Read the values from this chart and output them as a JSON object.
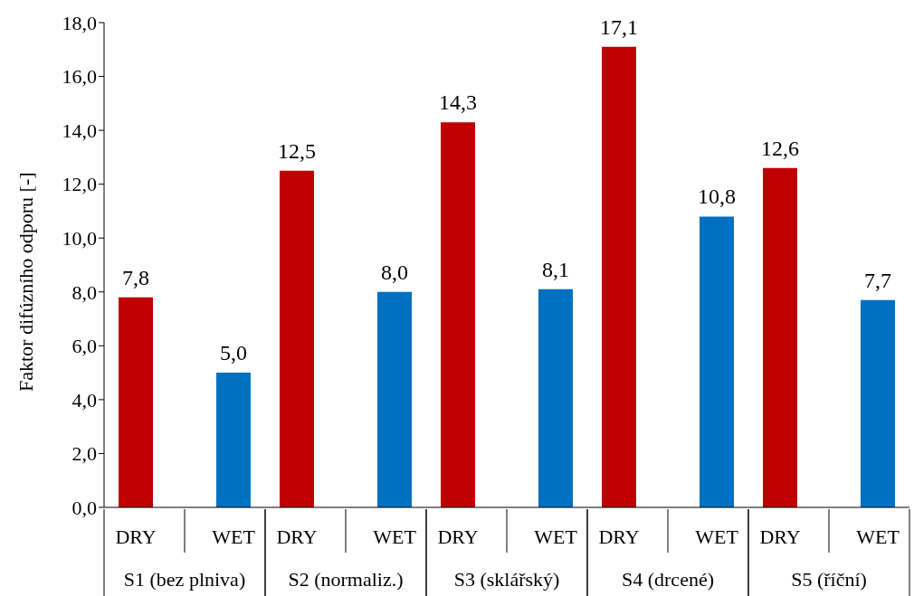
{
  "chart_data": {
    "type": "bar",
    "ylabel": "Faktor difúzního odporu [-]",
    "categories": [
      "S1 (bez plniva)",
      "S2 (normaliz.)",
      "S3 (sklářský)",
      "S4 (drcené)",
      "S5 (říční)"
    ],
    "series": [
      {
        "name": "DRY",
        "color": "#c00000",
        "values": [
          7.8,
          12.5,
          14.3,
          17.1,
          12.6
        ],
        "value_labels": [
          "7,8",
          "12,5",
          "14,3",
          "17,1",
          "12,6"
        ]
      },
      {
        "name": "WET",
        "color": "#0070c0",
        "values": [
          5.0,
          8.0,
          8.1,
          10.8,
          7.7
        ],
        "value_labels": [
          "5,0",
          "8,0",
          "8,1",
          "10,8",
          "7,7"
        ]
      }
    ],
    "ylim": [
      0,
      18
    ],
    "yticks": [
      {
        "value": 0,
        "label": "0,0"
      },
      {
        "value": 2,
        "label": "2,0"
      },
      {
        "value": 4,
        "label": "4,0"
      },
      {
        "value": 6,
        "label": "6,0"
      },
      {
        "value": 8,
        "label": "8,0"
      },
      {
        "value": 10,
        "label": "10,0"
      },
      {
        "value": 12,
        "label": "12,0"
      },
      {
        "value": 14,
        "label": "14,0"
      },
      {
        "value": 16,
        "label": "16,0"
      },
      {
        "value": 18,
        "label": "18,0"
      }
    ],
    "grid": false,
    "legend": false
  }
}
